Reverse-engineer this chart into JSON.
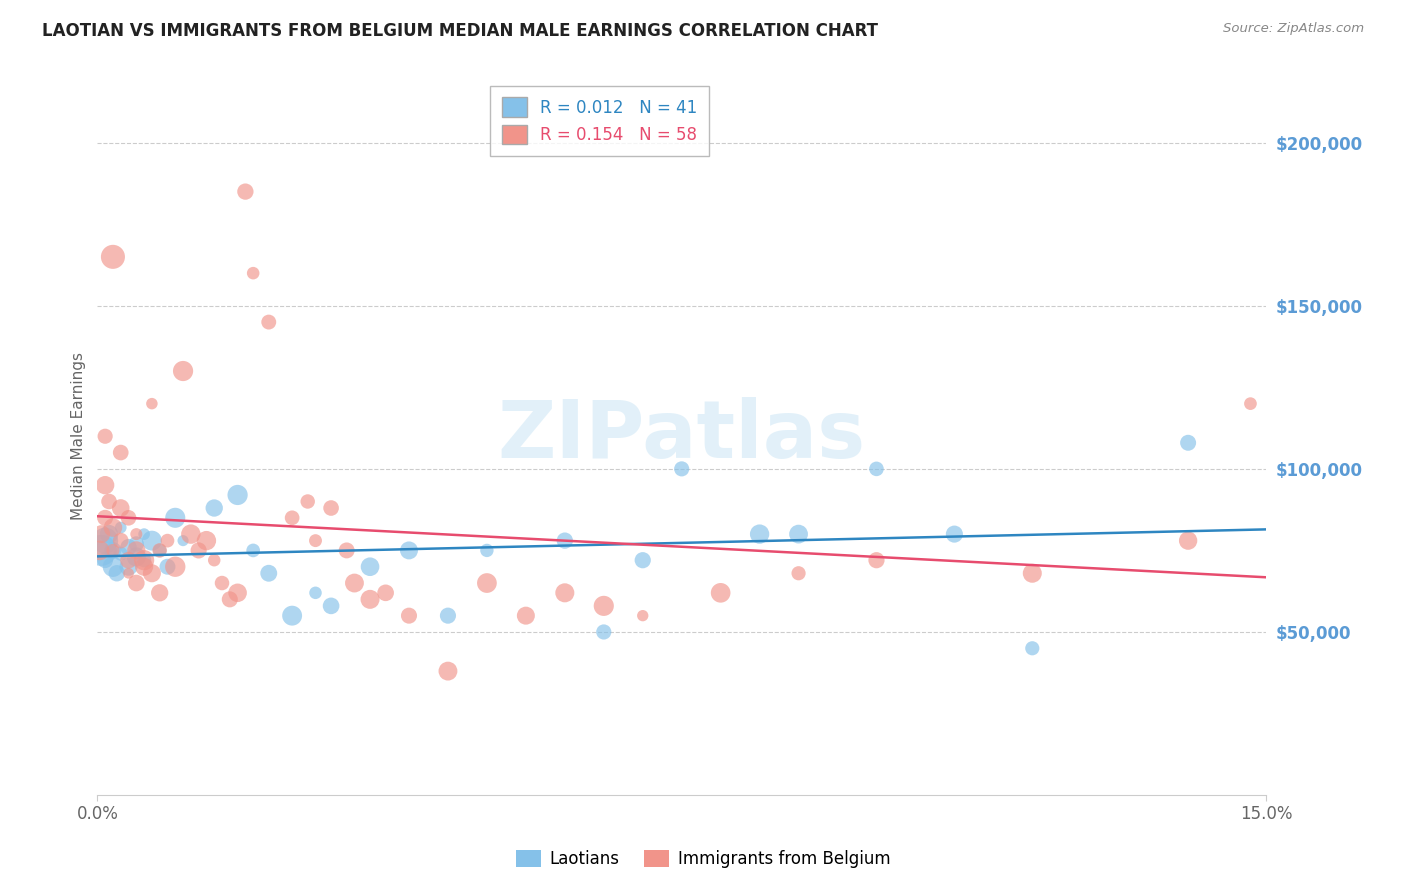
{
  "title": "LAOTIAN VS IMMIGRANTS FROM BELGIUM MEDIAN MALE EARNINGS CORRELATION CHART",
  "source": "Source: ZipAtlas.com",
  "ylabel": "Median Male Earnings",
  "ytick_color": "#5B9BD5",
  "blue_color": "#85C1E9",
  "pink_color": "#F1948A",
  "blue_line_color": "#2E86C1",
  "pink_line_color": "#E74C6E",
  "blue_R": "0.012",
  "blue_N": "41",
  "pink_R": "0.154",
  "pink_N": "58",
  "watermark": "ZIPatlas",
  "ylim": [
    0,
    220000
  ],
  "xlim": [
    0.0,
    0.15
  ],
  "blue_scatter": [
    [
      0.0005,
      75000
    ],
    [
      0.001,
      78000
    ],
    [
      0.001,
      72000
    ],
    [
      0.0015,
      80000
    ],
    [
      0.002,
      70000
    ],
    [
      0.002,
      75000
    ],
    [
      0.0025,
      68000
    ],
    [
      0.003,
      82000
    ],
    [
      0.003,
      74000
    ],
    [
      0.004,
      76000
    ],
    [
      0.004,
      70000
    ],
    [
      0.005,
      73000
    ],
    [
      0.005,
      77000
    ],
    [
      0.006,
      80000
    ],
    [
      0.006,
      72000
    ],
    [
      0.007,
      78000
    ],
    [
      0.008,
      75000
    ],
    [
      0.009,
      70000
    ],
    [
      0.01,
      85000
    ],
    [
      0.011,
      78000
    ],
    [
      0.015,
      88000
    ],
    [
      0.018,
      92000
    ],
    [
      0.02,
      75000
    ],
    [
      0.022,
      68000
    ],
    [
      0.025,
      55000
    ],
    [
      0.028,
      62000
    ],
    [
      0.03,
      58000
    ],
    [
      0.035,
      70000
    ],
    [
      0.04,
      75000
    ],
    [
      0.045,
      55000
    ],
    [
      0.05,
      75000
    ],
    [
      0.06,
      78000
    ],
    [
      0.065,
      50000
    ],
    [
      0.07,
      72000
    ],
    [
      0.075,
      100000
    ],
    [
      0.085,
      80000
    ],
    [
      0.09,
      80000
    ],
    [
      0.1,
      100000
    ],
    [
      0.11,
      80000
    ],
    [
      0.12,
      45000
    ],
    [
      0.14,
      108000
    ]
  ],
  "pink_scatter": [
    [
      0.0003,
      75000
    ],
    [
      0.0005,
      80000
    ],
    [
      0.001,
      110000
    ],
    [
      0.001,
      85000
    ],
    [
      0.001,
      95000
    ],
    [
      0.0015,
      90000
    ],
    [
      0.002,
      165000
    ],
    [
      0.002,
      75000
    ],
    [
      0.002,
      82000
    ],
    [
      0.003,
      105000
    ],
    [
      0.003,
      78000
    ],
    [
      0.003,
      88000
    ],
    [
      0.004,
      72000
    ],
    [
      0.004,
      85000
    ],
    [
      0.004,
      68000
    ],
    [
      0.005,
      80000
    ],
    [
      0.005,
      75000
    ],
    [
      0.005,
      65000
    ],
    [
      0.006,
      70000
    ],
    [
      0.006,
      72000
    ],
    [
      0.007,
      68000
    ],
    [
      0.007,
      120000
    ],
    [
      0.008,
      75000
    ],
    [
      0.008,
      62000
    ],
    [
      0.009,
      78000
    ],
    [
      0.01,
      70000
    ],
    [
      0.011,
      130000
    ],
    [
      0.012,
      80000
    ],
    [
      0.013,
      75000
    ],
    [
      0.014,
      78000
    ],
    [
      0.015,
      72000
    ],
    [
      0.016,
      65000
    ],
    [
      0.017,
      60000
    ],
    [
      0.018,
      62000
    ],
    [
      0.019,
      185000
    ],
    [
      0.02,
      160000
    ],
    [
      0.022,
      145000
    ],
    [
      0.025,
      85000
    ],
    [
      0.027,
      90000
    ],
    [
      0.028,
      78000
    ],
    [
      0.03,
      88000
    ],
    [
      0.032,
      75000
    ],
    [
      0.033,
      65000
    ],
    [
      0.035,
      60000
    ],
    [
      0.037,
      62000
    ],
    [
      0.04,
      55000
    ],
    [
      0.045,
      38000
    ],
    [
      0.05,
      65000
    ],
    [
      0.055,
      55000
    ],
    [
      0.06,
      62000
    ],
    [
      0.065,
      58000
    ],
    [
      0.07,
      55000
    ],
    [
      0.08,
      62000
    ],
    [
      0.09,
      68000
    ],
    [
      0.1,
      72000
    ],
    [
      0.12,
      68000
    ],
    [
      0.14,
      78000
    ],
    [
      0.148,
      120000
    ]
  ]
}
